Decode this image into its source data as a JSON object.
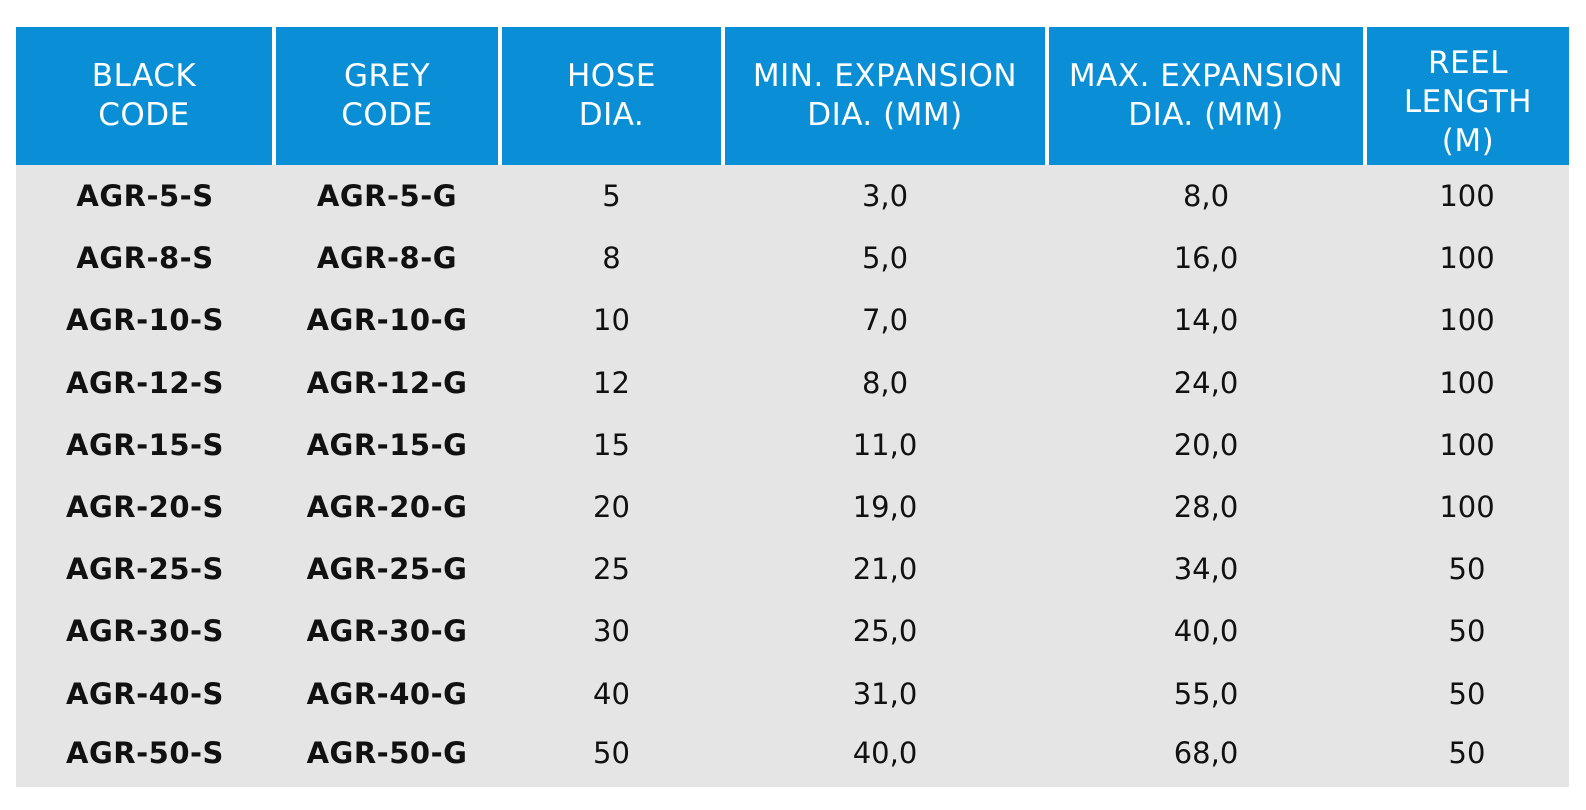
{
  "table": {
    "columns": [
      {
        "lines": [
          "BLACK",
          "CODE"
        ]
      },
      {
        "lines": [
          "GREY",
          "CODE"
        ]
      },
      {
        "lines": [
          "HOSE",
          "DIA."
        ]
      },
      {
        "lines": [
          "MIN. EXPANSION",
          "DIA. (MM)"
        ]
      },
      {
        "lines": [
          "MAX. EXPANSION",
          "DIA. (MM)"
        ]
      },
      {
        "lines": [
          "REEL",
          "LENGTH",
          "(M)"
        ]
      }
    ],
    "rows": [
      {
        "black_code": "AGR-5-S",
        "grey_code": "AGR-5-G",
        "hose_dia": "5",
        "min_exp": "3,0",
        "max_exp": "8,0",
        "reel_length": "100"
      },
      {
        "black_code": "AGR-8-S",
        "grey_code": "AGR-8-G",
        "hose_dia": "8",
        "min_exp": "5,0",
        "max_exp": "16,0",
        "reel_length": "100"
      },
      {
        "black_code": "AGR-10-S",
        "grey_code": "AGR-10-G",
        "hose_dia": "10",
        "min_exp": "7,0",
        "max_exp": "14,0",
        "reel_length": "100"
      },
      {
        "black_code": "AGR-12-S",
        "grey_code": "AGR-12-G",
        "hose_dia": "12",
        "min_exp": "8,0",
        "max_exp": "24,0",
        "reel_length": "100"
      },
      {
        "black_code": "AGR-15-S",
        "grey_code": "AGR-15-G",
        "hose_dia": "15",
        "min_exp": "11,0",
        "max_exp": "20,0",
        "reel_length": "100"
      },
      {
        "black_code": "AGR-20-S",
        "grey_code": "AGR-20-G",
        "hose_dia": "20",
        "min_exp": "19,0",
        "max_exp": "28,0",
        "reel_length": "100"
      },
      {
        "black_code": "AGR-25-S",
        "grey_code": "AGR-25-G",
        "hose_dia": "25",
        "min_exp": "21,0",
        "max_exp": "34,0",
        "reel_length": "50"
      },
      {
        "black_code": "AGR-30-S",
        "grey_code": "AGR-30-G",
        "hose_dia": "30",
        "min_exp": "25,0",
        "max_exp": "40,0",
        "reel_length": "50"
      },
      {
        "black_code": "AGR-40-S",
        "grey_code": "AGR-40-G",
        "hose_dia": "40",
        "min_exp": "31,0",
        "max_exp": "55,0",
        "reel_length": "50"
      },
      {
        "black_code": "AGR-50-S",
        "grey_code": "AGR-50-G",
        "hose_dia": "50",
        "min_exp": "40,0",
        "max_exp": "68,0",
        "reel_length": "50"
      }
    ]
  },
  "colors": {
    "header_background": "#0a8fd6",
    "header_text": "#ffffff",
    "body_background": "#e5e5e5",
    "body_text": "#111111"
  }
}
